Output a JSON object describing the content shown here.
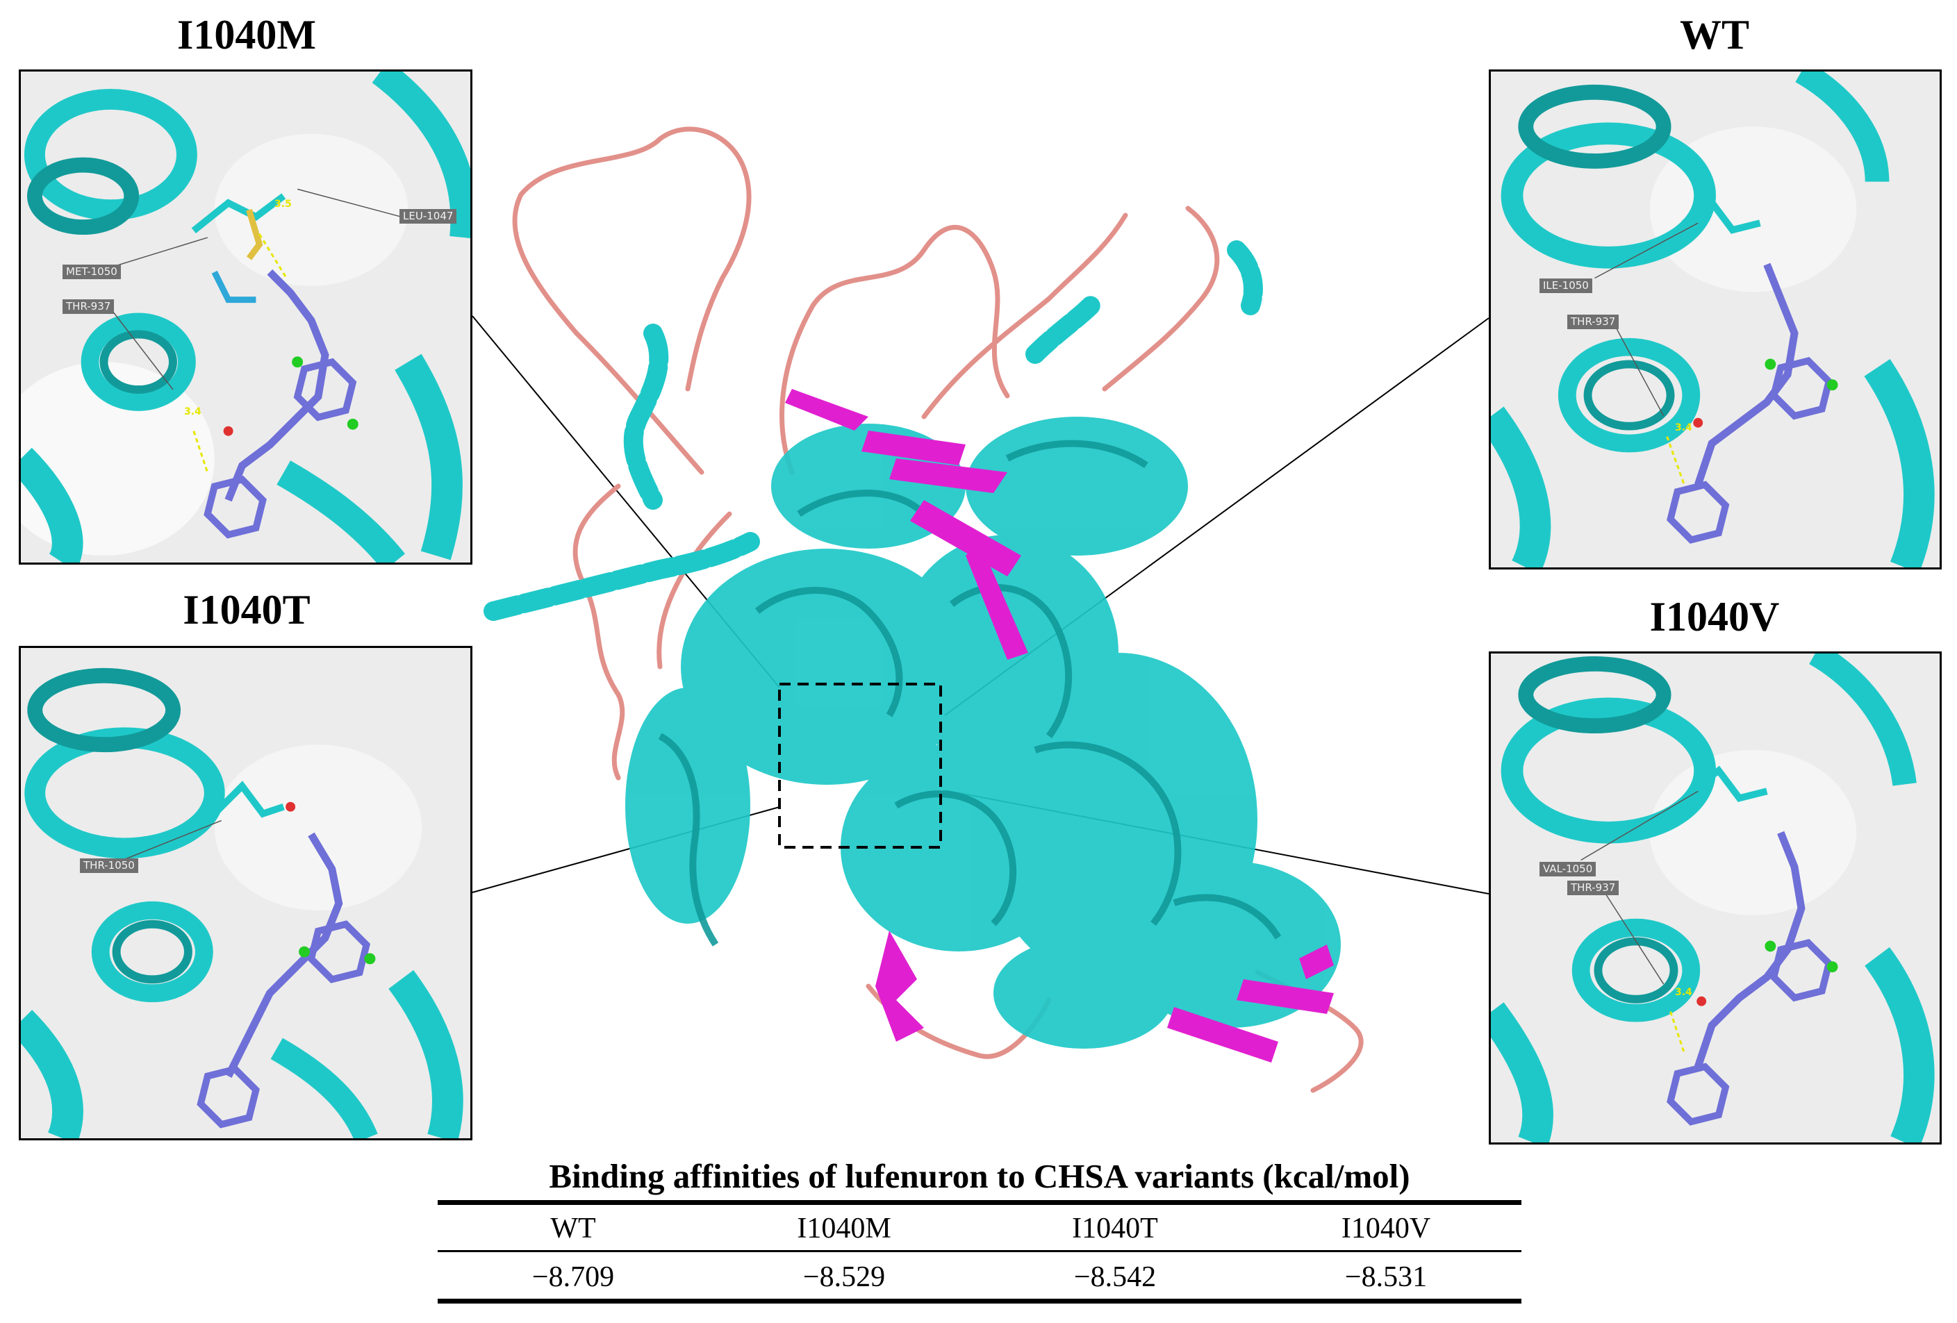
{
  "panels": {
    "i1040m": {
      "title": "I1040M",
      "labels": {
        "leu": "LEU-1047",
        "met": "MET-1050",
        "thr": "THR-937"
      },
      "distances": {
        "d1": "3.5",
        "d2": "3.4"
      }
    },
    "wt": {
      "title": "WT",
      "labels": {
        "ile": "ILE-1050",
        "thr": "THR-937"
      },
      "distances": {
        "d1": "3.4"
      }
    },
    "i1040t": {
      "title": "I1040T",
      "labels": {
        "thr1050": "THR-1050"
      }
    },
    "i1040v": {
      "title": "I1040V",
      "labels": {
        "val": "VAL-1050",
        "thr": "THR-937"
      },
      "distances": {
        "d1": "3.4"
      }
    }
  },
  "table": {
    "title": "Binding affinities of lufenuron to CHSA variants (kcal/mol)",
    "headers": [
      "WT",
      "I1040M",
      "I1040T",
      "I1040V"
    ],
    "values": [
      "−8.709",
      "−8.529",
      "−8.542",
      "−8.531"
    ]
  },
  "colors": {
    "helix": "#1fc8c8",
    "helix_dark": "#129a9a",
    "sheet": "#e020d0",
    "loop": "#e2908a",
    "ligand": "#6f6fd8",
    "surface": "#e9e9e9"
  }
}
